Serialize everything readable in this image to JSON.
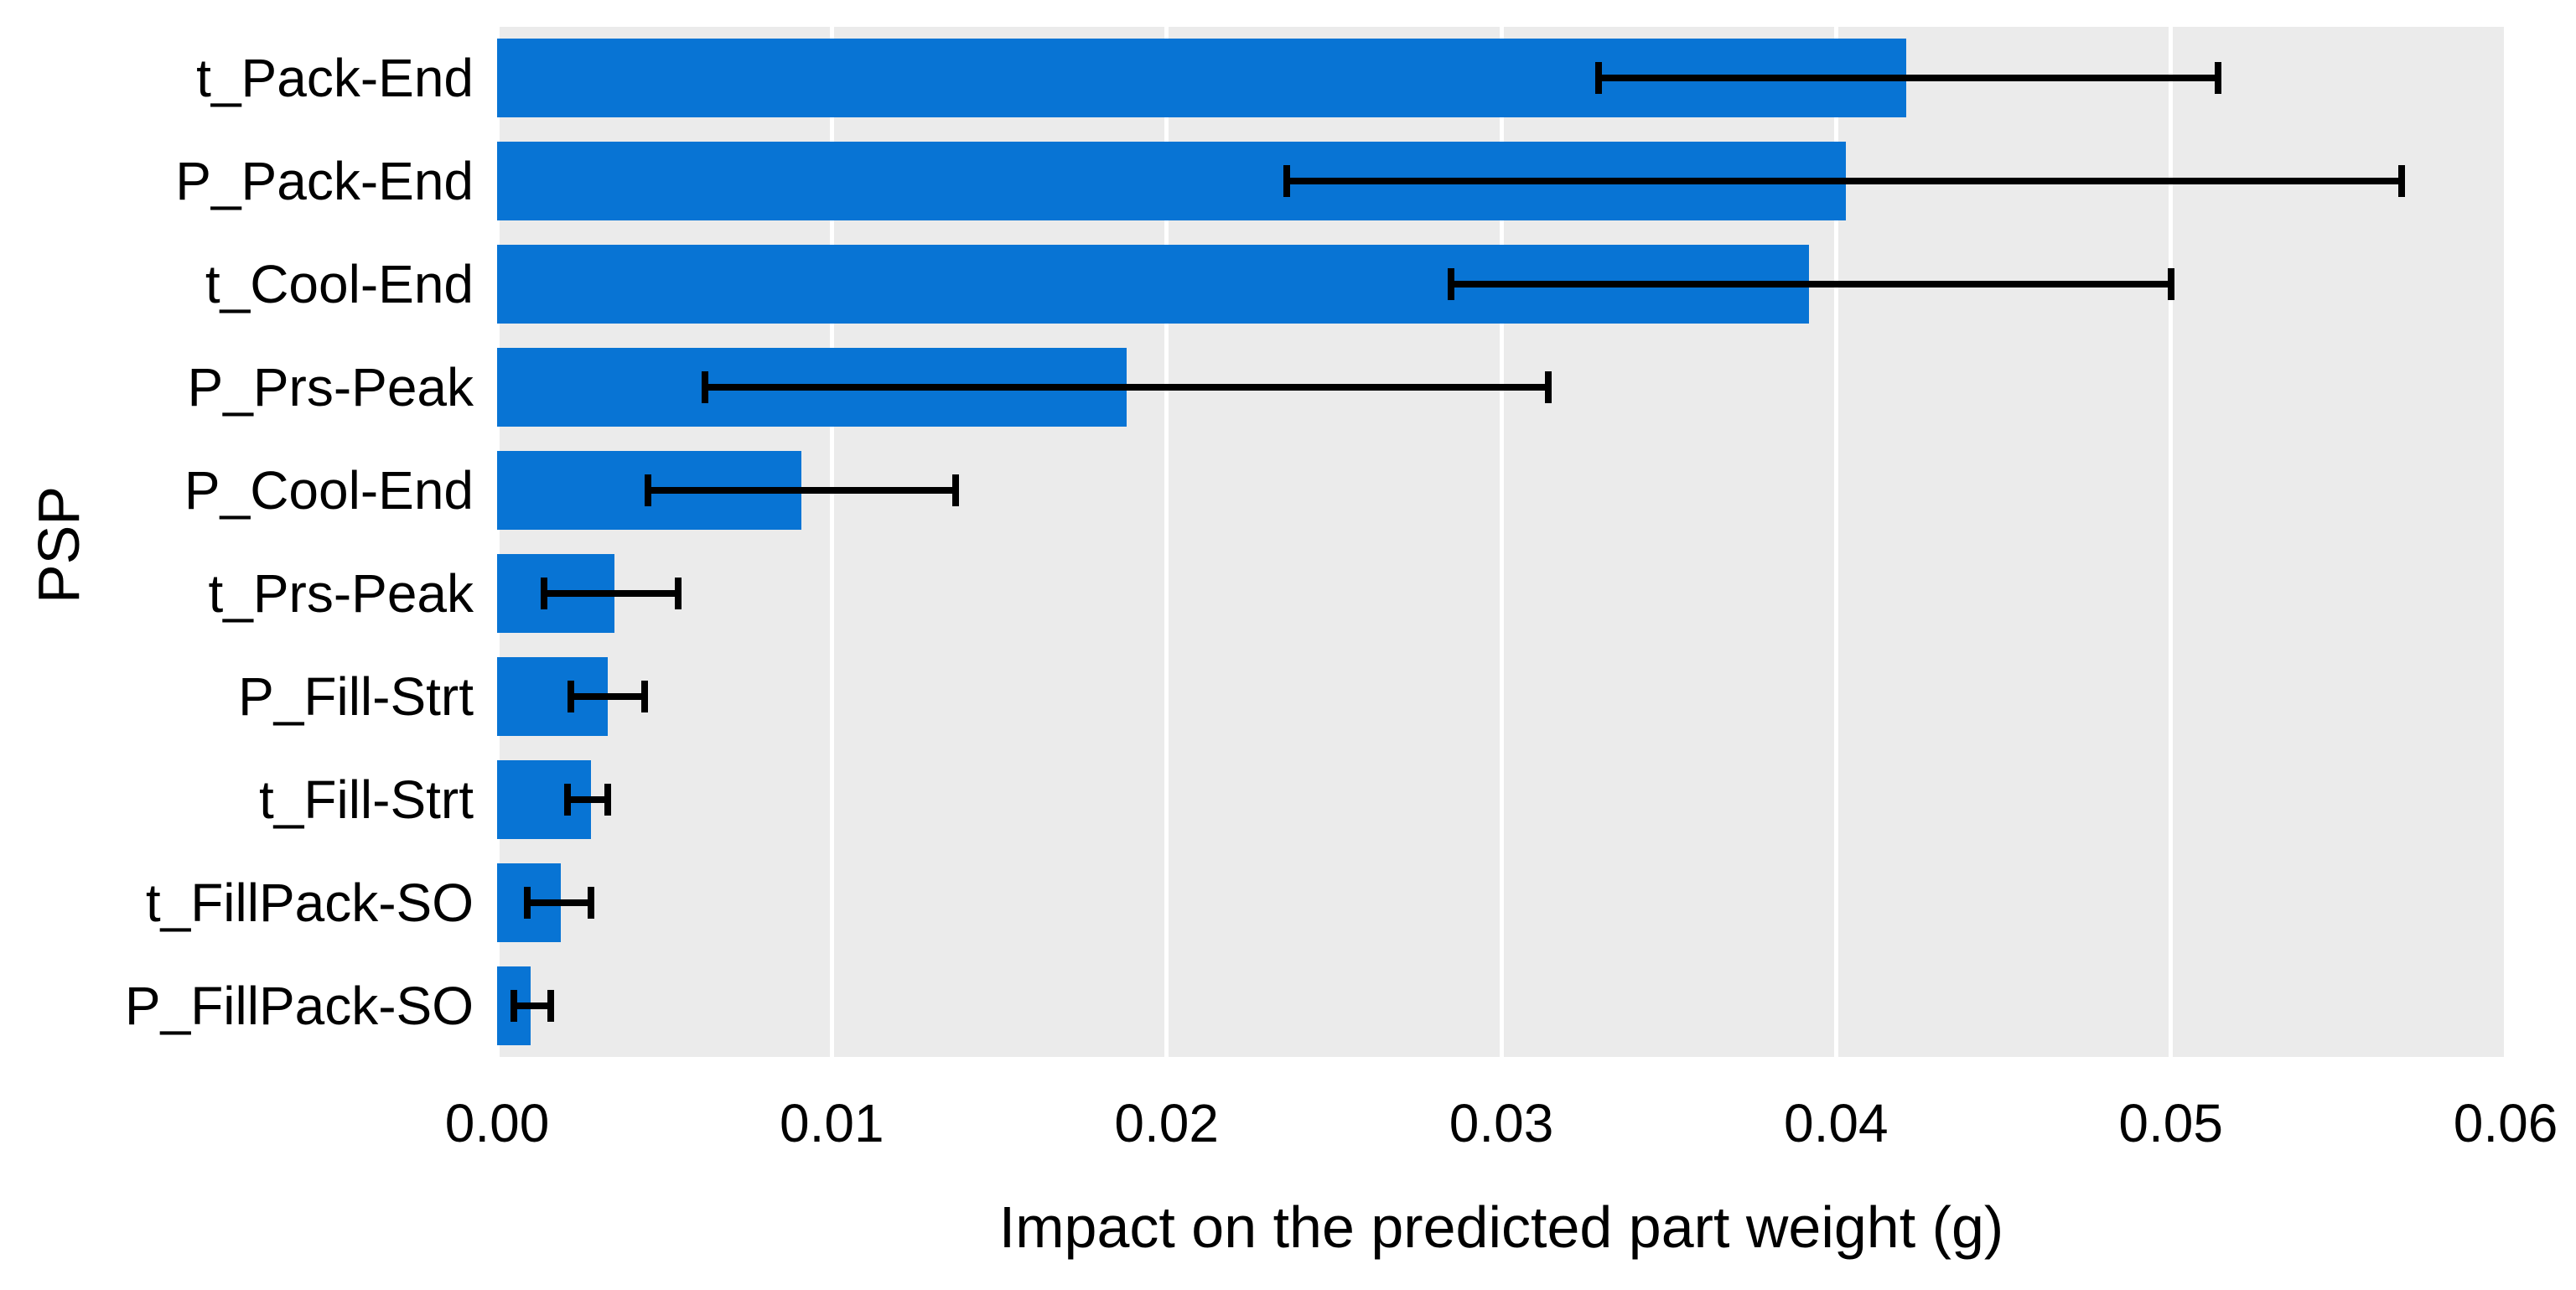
{
  "figure": {
    "background_color": "#ffffff",
    "panel_background_color": "#ebebeb",
    "gridline_color": "#ffffff",
    "bar_color": "#0874d4",
    "error_bar_color": "#000000",
    "text_color": "#000000"
  },
  "chart_data": {
    "type": "bar",
    "orientation": "horizontal",
    "title": "",
    "xlabel": "Impact on the predicted part weight (g)",
    "ylabel": "PSP",
    "categories": [
      "t_Pack-End",
      "P_Pack-End",
      "t_Cool-End",
      "P_Prs-Peak",
      "P_Cool-End",
      "t_Prs-Peak",
      "P_Fill-Strt",
      "t_Fill-Strt",
      "t_FillPack-SO",
      "P_FillPack-SO"
    ],
    "values": [
      0.0421,
      0.0403,
      0.0392,
      0.0188,
      0.0091,
      0.0035,
      0.0033,
      0.0028,
      0.0019,
      0.001
    ],
    "error_low": [
      0.0329,
      0.0236,
      0.0285,
      0.0062,
      0.0045,
      0.0014,
      0.0022,
      0.0021,
      0.0009,
      0.0005
    ],
    "error_high": [
      0.0514,
      0.0569,
      0.05,
      0.0314,
      0.0137,
      0.0054,
      0.0044,
      0.0033,
      0.0028,
      0.0016
    ],
    "xlim": [
      0,
      0.06
    ],
    "xticks": [
      "0.00",
      "0.01",
      "0.02",
      "0.03",
      "0.04",
      "0.05",
      "0.06"
    ],
    "grid": "vertical-major-only",
    "legend": "none",
    "bar_fraction": 0.765
  }
}
